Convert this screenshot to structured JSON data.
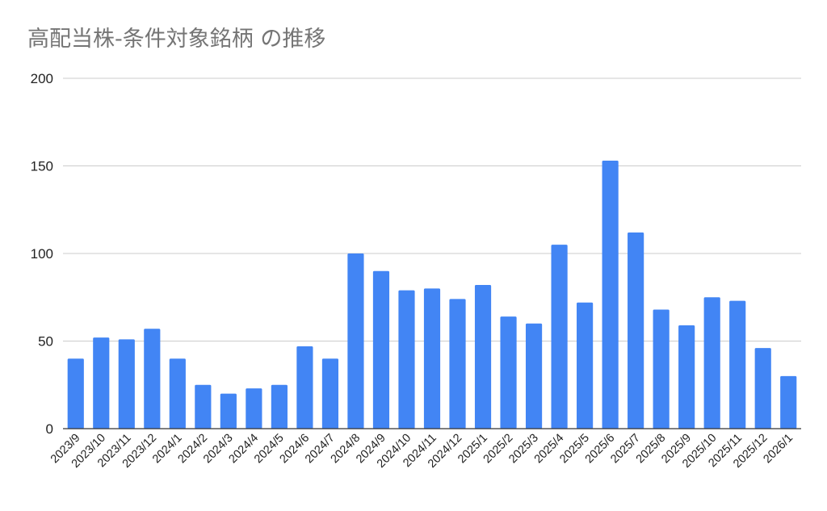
{
  "chart_data": {
    "type": "bar",
    "title": "高配当株-条件対象銘柄 の推移",
    "categories": [
      "2023/9",
      "2023/10",
      "2023/11",
      "2023/12",
      "2024/1",
      "2024/2",
      "2024/3",
      "2024/4",
      "2024/5",
      "2024/6",
      "2024/7",
      "2024/8",
      "2024/9",
      "2024/10",
      "2024/11",
      "2024/12",
      "2025/1",
      "2025/2",
      "2025/3",
      "2025/4",
      "2025/5",
      "2025/6",
      "2025/7",
      "2025/8",
      "2025/9",
      "2025/10",
      "2025/11",
      "2025/12",
      "2026/1"
    ],
    "values": [
      40,
      52,
      51,
      57,
      40,
      25,
      20,
      23,
      25,
      47,
      40,
      100,
      90,
      79,
      80,
      74,
      82,
      64,
      60,
      105,
      72,
      153,
      112,
      68,
      59,
      75,
      73,
      46,
      30
    ],
    "ylim": [
      0,
      200
    ],
    "yticks": [
      0,
      50,
      100,
      150,
      200
    ],
    "xlabel": "",
    "ylabel": "",
    "grid": true,
    "bar_color": "#4285f4",
    "grid_color": "#cccccc",
    "axis_color": "#333333"
  }
}
